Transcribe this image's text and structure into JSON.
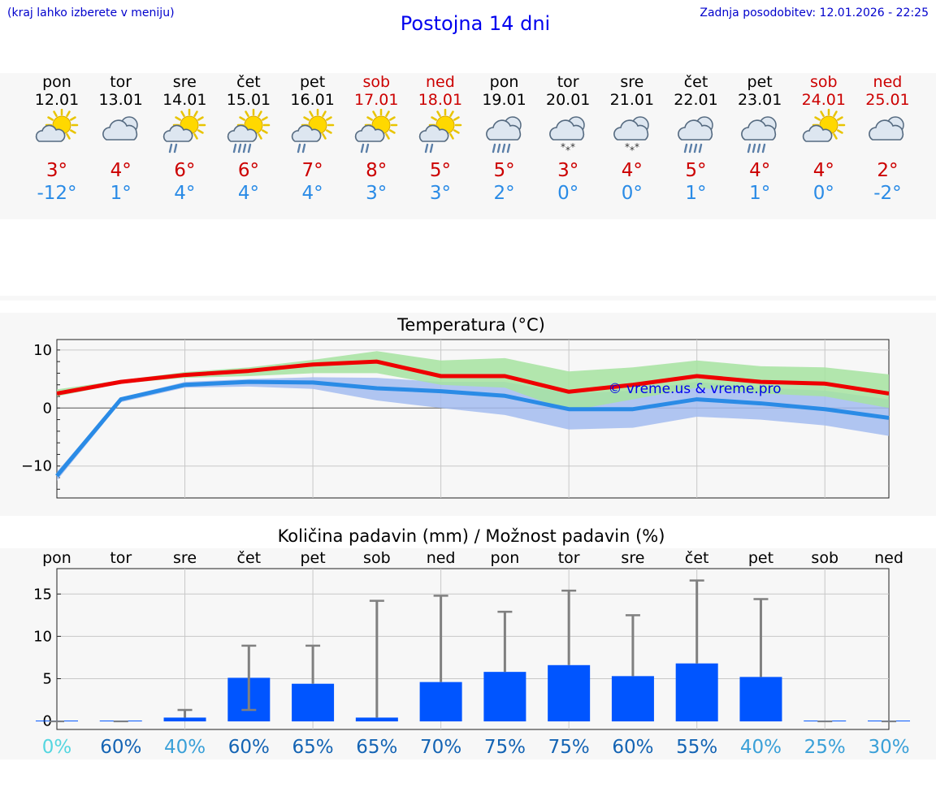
{
  "header": {
    "hint": "(kraj lahko izberete v meniju)",
    "title": "Postojna 14 dni",
    "updated": "Zadnja posodobitev: 12.01.2026 - 22:25"
  },
  "days": [
    {
      "name": "pon",
      "date": "12.01",
      "weekend": false,
      "icon": "partly-cloudy-sun",
      "max": "3°",
      "min": "-12°"
    },
    {
      "name": "tor",
      "date": "13.01",
      "weekend": false,
      "icon": "cloudy",
      "max": "4°",
      "min": "1°"
    },
    {
      "name": "sre",
      "date": "14.01",
      "weekend": false,
      "icon": "sun-cloud-light-rain",
      "max": "6°",
      "min": "4°"
    },
    {
      "name": "čet",
      "date": "15.01",
      "weekend": false,
      "icon": "sun-cloud-rain",
      "max": "6°",
      "min": "4°"
    },
    {
      "name": "pet",
      "date": "16.01",
      "weekend": false,
      "icon": "sun-cloud-light-rain",
      "max": "7°",
      "min": "4°"
    },
    {
      "name": "sob",
      "date": "17.01",
      "weekend": true,
      "icon": "sun-cloud-light-rain",
      "max": "8°",
      "min": "3°"
    },
    {
      "name": "ned",
      "date": "18.01",
      "weekend": true,
      "icon": "sun-cloud-light-rain",
      "max": "5°",
      "min": "3°"
    },
    {
      "name": "pon",
      "date": "19.01",
      "weekend": false,
      "icon": "cloud-rain",
      "max": "5°",
      "min": "2°"
    },
    {
      "name": "tor",
      "date": "20.01",
      "weekend": false,
      "icon": "cloud-snow",
      "max": "3°",
      "min": "0°"
    },
    {
      "name": "sre",
      "date": "21.01",
      "weekend": false,
      "icon": "cloud-snow",
      "max": "4°",
      "min": "0°"
    },
    {
      "name": "čet",
      "date": "22.01",
      "weekend": false,
      "icon": "cloud-rain",
      "max": "5°",
      "min": "1°"
    },
    {
      "name": "pet",
      "date": "23.01",
      "weekend": false,
      "icon": "cloud-rain",
      "max": "4°",
      "min": "1°"
    },
    {
      "name": "sob",
      "date": "24.01",
      "weekend": true,
      "icon": "partly-cloudy-sun",
      "max": "4°",
      "min": "0°"
    },
    {
      "name": "ned",
      "date": "25.01",
      "weekend": true,
      "icon": "cloudy",
      "max": "2°",
      "min": "-2°"
    }
  ],
  "colors": {
    "max_line": "#ee0000",
    "min_line": "#2a8be6",
    "max_band": "#a6e3a0",
    "min_band": "#a3bcf0",
    "bar": "#0055ff",
    "whisker": "#808080",
    "weekend": "#cc0000",
    "title": "#0000ee"
  },
  "chart_data": [
    {
      "type": "line",
      "title": "Temperatura (°C)",
      "ylim": [
        -15.5,
        11.8
      ],
      "yticks": [
        10,
        0,
        -10
      ],
      "ytick_labels": [
        "10",
        "0",
        "−10"
      ],
      "watermark": "© vreme.us & vreme.pro",
      "x": [
        0,
        1,
        2,
        3,
        4,
        5,
        6,
        7,
        8,
        9,
        10,
        11,
        12,
        13
      ],
      "series": [
        {
          "name": "max",
          "values": [
            2.5,
            4.5,
            5.7,
            6.4,
            7.5,
            8.0,
            5.5,
            5.5,
            2.8,
            4.0,
            5.5,
            4.5,
            4.2,
            2.5
          ],
          "band_low": [
            2.0,
            4.2,
            5.2,
            5.5,
            6.0,
            6.0,
            4.0,
            3.5,
            -0.5,
            1.5,
            3.5,
            2.5,
            2.0,
            0.0
          ],
          "band_high": [
            3.2,
            4.8,
            6.2,
            7.0,
            8.3,
            9.8,
            8.2,
            8.6,
            6.3,
            7.0,
            8.2,
            7.2,
            7.0,
            5.8
          ]
        },
        {
          "name": "min",
          "values": [
            -11.7,
            1.5,
            4.0,
            4.5,
            4.4,
            3.4,
            2.9,
            2.1,
            -0.2,
            -0.2,
            1.5,
            0.8,
            -0.2,
            -1.7
          ],
          "band_low": [
            -12.5,
            1.0,
            3.5,
            3.7,
            3.3,
            1.3,
            0.0,
            -1.2,
            -3.7,
            -3.4,
            -1.5,
            -2.0,
            -3.0,
            -4.8
          ],
          "band_high": [
            -11.0,
            1.8,
            4.5,
            5.0,
            5.3,
            5.2,
            4.5,
            4.5,
            2.5,
            3.0,
            4.5,
            3.5,
            3.0,
            1.5
          ]
        }
      ]
    },
    {
      "type": "bar",
      "title": "Količina padavin (mm) / Možnost padavin (%)",
      "ylim": [
        -1,
        18
      ],
      "yticks": [
        0,
        5,
        10,
        15
      ],
      "categories": [
        "pon",
        "tor",
        "sre",
        "čet",
        "pet",
        "sob",
        "ned",
        "pon",
        "tor",
        "sre",
        "čet",
        "pet",
        "sob",
        "ned"
      ],
      "values": [
        0,
        0,
        0.4,
        5.1,
        4.4,
        0.4,
        4.6,
        5.8,
        6.6,
        5.3,
        6.8,
        5.2,
        0,
        0
      ],
      "err_low": [
        0,
        0,
        0,
        1.3,
        0,
        0,
        0,
        0,
        0,
        0,
        0,
        0,
        0,
        0
      ],
      "err_high": [
        0,
        0,
        1.3,
        8.9,
        8.9,
        14.2,
        14.8,
        12.9,
        15.4,
        12.5,
        16.6,
        14.4,
        0,
        0
      ],
      "probability": [
        "0%",
        "60%",
        "40%",
        "60%",
        "65%",
        "65%",
        "70%",
        "75%",
        "75%",
        "60%",
        "55%",
        "40%",
        "25%",
        "30%"
      ],
      "prob_colors": [
        "#55d6e0",
        "#1464b4",
        "#3aa0d8",
        "#1464b4",
        "#1464b4",
        "#1464b4",
        "#1464b4",
        "#1464b4",
        "#1464b4",
        "#1464b4",
        "#1464b4",
        "#3aa0d8",
        "#3aa0d8",
        "#3aa0d8"
      ]
    }
  ]
}
